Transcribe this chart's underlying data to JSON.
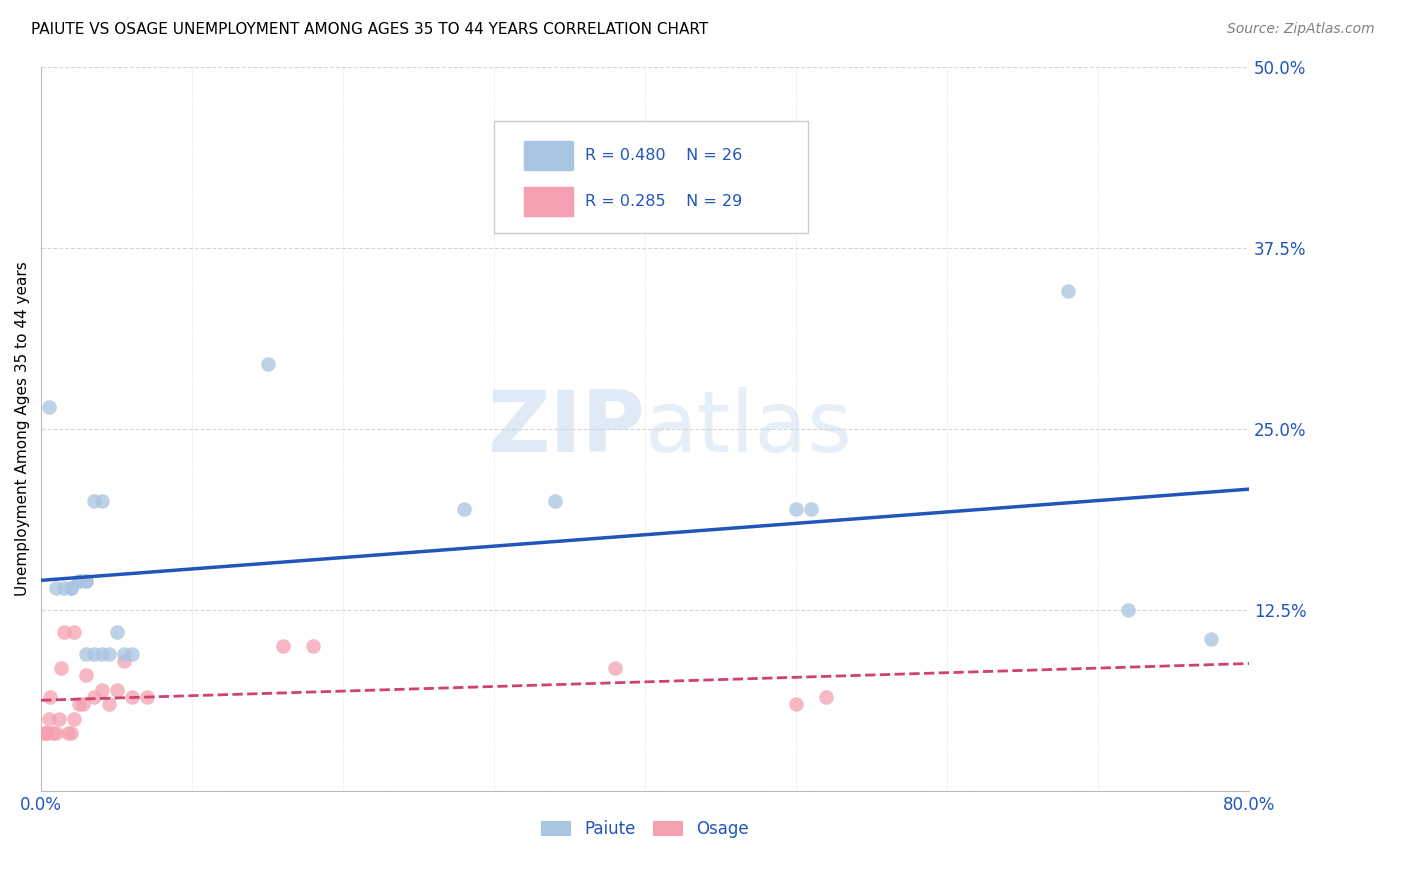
{
  "title": "PAIUTE VS OSAGE UNEMPLOYMENT AMONG AGES 35 TO 44 YEARS CORRELATION CHART",
  "source": "Source: ZipAtlas.com",
  "ylabel": "Unemployment Among Ages 35 to 44 years",
  "xlim": [
    0.0,
    0.8
  ],
  "ylim": [
    0.0,
    0.5
  ],
  "xticks": [
    0.0,
    0.1,
    0.2,
    0.3,
    0.4,
    0.5,
    0.6,
    0.7,
    0.8
  ],
  "yticks": [
    0.0,
    0.125,
    0.25,
    0.375,
    0.5
  ],
  "ytick_labels": [
    "",
    "12.5%",
    "25.0%",
    "37.5%",
    "50.0%"
  ],
  "xtick_labels": [
    "0.0%",
    "",
    "",
    "",
    "",
    "",
    "",
    "",
    "80.0%"
  ],
  "paiute_R": 0.48,
  "paiute_N": 26,
  "osage_R": 0.285,
  "osage_N": 29,
  "paiute_color": "#a8c4e0",
  "osage_color": "#f4a0b0",
  "paiute_line_color": "#2255bb",
  "osage_line_color": "#d04070",
  "legend_text_color": "#2255bb",
  "watermark_color": "#c8daf0",
  "paiute_x": [
    0.005,
    0.01,
    0.015,
    0.02,
    0.02,
    0.025,
    0.025,
    0.03,
    0.03,
    0.03,
    0.035,
    0.035,
    0.04,
    0.04,
    0.045,
    0.05,
    0.055,
    0.06,
    0.15,
    0.28,
    0.34,
    0.5,
    0.51,
    0.68,
    0.72,
    0.775
  ],
  "paiute_y": [
    0.265,
    0.14,
    0.14,
    0.14,
    0.14,
    0.145,
    0.145,
    0.145,
    0.145,
    0.095,
    0.095,
    0.2,
    0.095,
    0.2,
    0.095,
    0.11,
    0.095,
    0.095,
    0.295,
    0.195,
    0.2,
    0.195,
    0.195,
    0.345,
    0.125,
    0.105
  ],
  "osage_x": [
    0.002,
    0.003,
    0.004,
    0.005,
    0.006,
    0.008,
    0.01,
    0.012,
    0.013,
    0.015,
    0.018,
    0.02,
    0.022,
    0.022,
    0.025,
    0.028,
    0.03,
    0.035,
    0.04,
    0.045,
    0.05,
    0.055,
    0.06,
    0.07,
    0.16,
    0.18,
    0.38,
    0.5,
    0.52
  ],
  "osage_y": [
    0.04,
    0.04,
    0.04,
    0.05,
    0.065,
    0.04,
    0.04,
    0.05,
    0.085,
    0.11,
    0.04,
    0.04,
    0.05,
    0.11,
    0.06,
    0.06,
    0.08,
    0.065,
    0.07,
    0.06,
    0.07,
    0.09,
    0.065,
    0.065,
    0.1,
    0.1,
    0.085,
    0.06,
    0.065
  ],
  "background_color": "#ffffff",
  "grid_color": "#cccccc",
  "marker_size": 110
}
